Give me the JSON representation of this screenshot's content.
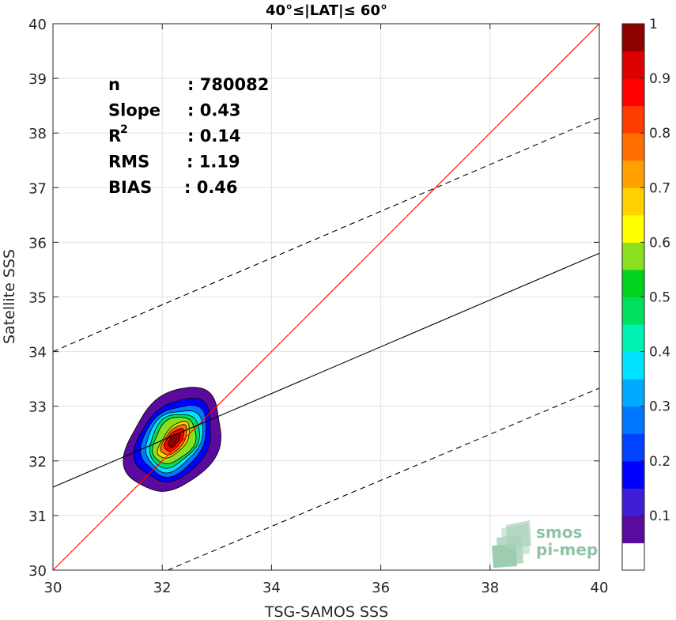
{
  "chart_data": {
    "type": "heatmap",
    "title": "40°≤|LAT|≤ 60°",
    "xlabel": "TSG-SAMOS SSS",
    "ylabel": "Satellite SSS",
    "xlim": [
      30,
      40
    ],
    "ylim": [
      30,
      40
    ],
    "xticks": [
      30,
      32,
      34,
      36,
      38,
      40
    ],
    "yticks": [
      30,
      31,
      32,
      33,
      34,
      35,
      36,
      37,
      38,
      39,
      40
    ],
    "grid": true,
    "stats": [
      {
        "label": "n",
        "sep": ":",
        "value": "780082"
      },
      {
        "label": "Slope",
        "sep": ":",
        "value": "0.43"
      },
      {
        "label": "R",
        "sup": "2",
        "sep": ":",
        "value": "0.14"
      },
      {
        "label": "RMS",
        "sep": ":",
        "value": "1.19"
      },
      {
        "label": "BIAS",
        "sep": ":",
        "value": "0.46"
      }
    ],
    "lines": {
      "identity": {
        "x": [
          30,
          40
        ],
        "y": [
          30,
          40
        ],
        "color": "#ff0000"
      },
      "regression": {
        "x": [
          30,
          40
        ],
        "y": [
          31.52,
          35.8
        ],
        "color": "#000000"
      },
      "upper_band": {
        "x": [
          30,
          40
        ],
        "y": [
          34.0,
          38.28
        ],
        "color": "#000000",
        "style": "dashed"
      },
      "lower_band": {
        "x": [
          32.1,
          40
        ],
        "y": [
          30.0,
          33.33
        ],
        "color": "#000000",
        "style": "dashed"
      }
    },
    "density_contours": {
      "center": [
        32.22,
        32.38
      ],
      "levels": [
        0.05,
        0.15,
        0.25,
        0.35,
        0.45,
        0.55,
        0.65,
        0.75,
        0.85,
        0.95
      ],
      "radius_x_at_min_level": 1.05,
      "radius_y_at_min_level": 0.95,
      "rotation_deg": 52
    },
    "colorbar": {
      "range": [
        0,
        1
      ],
      "ticks": [
        0.1,
        0.2,
        0.3,
        0.4,
        0.5,
        0.6,
        0.7,
        0.8,
        0.9,
        1
      ],
      "tick_labels": [
        "0.1",
        "0.2",
        "0.3",
        "0.4",
        "0.5",
        "0.6",
        "0.7",
        "0.8",
        "0.9",
        "1"
      ],
      "colors": [
        "#ffffff",
        "#5a0a9e",
        "#3f1ed6",
        "#0000ff",
        "#0042ff",
        "#0077ff",
        "#00aaff",
        "#00e2ff",
        "#00f2b0",
        "#00e060",
        "#00d21e",
        "#8ae01e",
        "#ffff00",
        "#ffd200",
        "#ffa000",
        "#ff6e00",
        "#ff3c00",
        "#ff0000",
        "#dc0000",
        "#8c0000"
      ]
    }
  },
  "logo": {
    "line1": "smos",
    "line2": "pi-mep"
  }
}
